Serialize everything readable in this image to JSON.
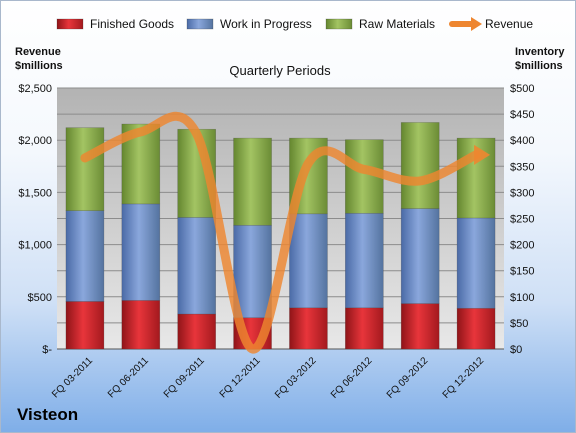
{
  "company": "Visteon",
  "chart_data": {
    "type": "bar",
    "subtype": "stacked-bar-with-line",
    "title": "Quarterly Periods",
    "categories": [
      "FQ 03-2011",
      "FQ 06-2011",
      "FQ 09-2011",
      "FQ 12-2011",
      "FQ 03-2012",
      "FQ 06-2012",
      "FQ 09-2012",
      "FQ 12-2012"
    ],
    "left_axis": {
      "title_line1": "Revenue",
      "title_line2": "$millions",
      "range": [
        0,
        2500
      ],
      "ticks": [
        0,
        500,
        1000,
        1500,
        2000,
        2500
      ],
      "tick_labels": [
        "$-",
        "$500",
        "$1,000",
        "$1,500",
        "$2,000",
        "$2,500"
      ]
    },
    "right_axis": {
      "title_line1": "Inventory",
      "title_line2": "$millions",
      "range": [
        0,
        500
      ],
      "ticks": [
        0,
        50,
        100,
        150,
        200,
        250,
        300,
        350,
        400,
        450,
        500
      ],
      "tick_labels": [
        "$0",
        "$50",
        "$100",
        "$150",
        "$200",
        "$250",
        "$300",
        "$350",
        "$400",
        "$450",
        "$500"
      ]
    },
    "legend_position": "top",
    "gridlines": true,
    "series": [
      {
        "name": "Finished Goods",
        "axis": "right",
        "type": "bar",
        "color": "#d9262e",
        "values": [
          91,
          93,
          67,
          60,
          79,
          79,
          87,
          78
        ]
      },
      {
        "name": "Work in Progress",
        "axis": "right",
        "type": "bar",
        "color": "#6f8fcb",
        "values": [
          174,
          185,
          185,
          177,
          180,
          181,
          182,
          173
        ]
      },
      {
        "name": "Raw Materials",
        "axis": "right",
        "type": "bar",
        "color": "#8fb24f",
        "values": [
          159,
          153,
          169,
          167,
          145,
          141,
          165,
          153
        ]
      },
      {
        "name": "Revenue",
        "axis": "left",
        "type": "line",
        "color": "#ee8630",
        "values": [
          1830,
          2080,
          2060,
          0,
          1780,
          1720,
          1610,
          1860
        ]
      }
    ]
  }
}
